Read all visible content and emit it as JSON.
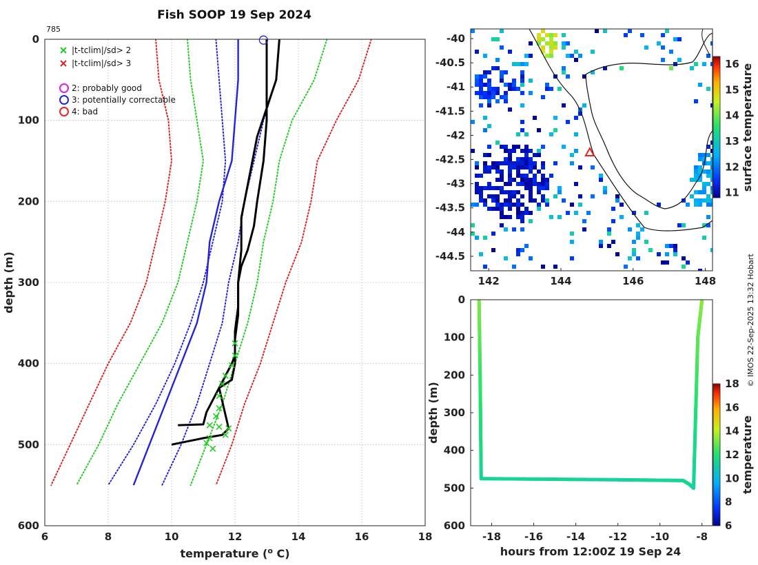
{
  "chart_data": [
    {
      "type": "line",
      "title": "Fish SOOP 19 Sep 2024",
      "profile_id": "785",
      "xlabel": "temperature (",
      "xlabel_sup": "o",
      "xlabel_tail": " C)",
      "ylabel": "depth (m)",
      "xlim": [
        6,
        18
      ],
      "ylim": [
        600,
        0
      ],
      "xticks": [
        "6",
        "8",
        "10",
        "12",
        "14",
        "16",
        "18"
      ],
      "yticks": [
        "0",
        "100",
        "200",
        "300",
        "400",
        "500",
        "600"
      ],
      "legend": [
        {
          "label": "|t-tclim|/sd> 2",
          "marker": "x",
          "color": "#22cc22"
        },
        {
          "label": "|t-tclim|/sd> 3",
          "marker": "x",
          "color": "#dd2222"
        },
        {
          "label": "2: probably good",
          "marker": "o",
          "color": "#dd22dd"
        },
        {
          "label": "3: potentially correctable",
          "marker": "o",
          "color": "#2222dd"
        },
        {
          "label": "4: bad",
          "marker": "o",
          "color": "#ee2222"
        }
      ],
      "climatology_depths": [
        0,
        50,
        100,
        150,
        200,
        250,
        300,
        350,
        400,
        450,
        500,
        550
      ],
      "series": [
        {
          "name": "clim -3sd",
          "color": "#dd2222",
          "style": "dotted",
          "values": [
            9.5,
            9.6,
            9.9,
            10.0,
            9.8,
            9.5,
            9.2,
            8.7,
            8.0,
            7.4,
            6.8,
            6.2
          ]
        },
        {
          "name": "clim -2sd",
          "color": "#22cc22",
          "style": "dotted",
          "values": [
            10.5,
            10.6,
            10.8,
            11.0,
            10.8,
            10.5,
            10.2,
            9.7,
            9.0,
            8.3,
            7.7,
            7.0
          ]
        },
        {
          "name": "clim -1sd",
          "color": "#2222dd",
          "style": "dotted",
          "values": [
            11.4,
            11.5,
            11.6,
            11.7,
            11.6,
            11.3,
            11.0,
            10.6,
            10.1,
            9.5,
            8.8,
            8.0
          ]
        },
        {
          "name": "clim mean",
          "color": "#2222dd",
          "style": "solid",
          "values": [
            12.1,
            12.1,
            12.0,
            11.9,
            11.5,
            11.2,
            11.1,
            10.8,
            10.3,
            9.8,
            9.3,
            8.8
          ]
        },
        {
          "name": "clim +1sd",
          "color": "#2222dd",
          "style": "dotted",
          "values": [
            13.4,
            13.3,
            12.9,
            12.6,
            12.3,
            12.1,
            11.8,
            11.6,
            11.2,
            10.8,
            10.3,
            9.7
          ]
        },
        {
          "name": "clim +2sd",
          "color": "#22cc22",
          "style": "dotted",
          "values": [
            14.9,
            14.5,
            13.8,
            13.4,
            13.2,
            12.9,
            12.7,
            12.4,
            12.0,
            11.6,
            11.1,
            10.6
          ]
        },
        {
          "name": "clim +3sd",
          "color": "#dd2222",
          "style": "dotted",
          "values": [
            16.3,
            15.9,
            15.2,
            14.6,
            14.4,
            14.1,
            13.6,
            13.2,
            12.8,
            12.3,
            11.9,
            11.4
          ]
        }
      ],
      "profiles": [
        {
          "name": "temperature profile A",
          "color": "#000000",
          "x": [
            13.0,
            13.0,
            13.0,
            12.9,
            12.7,
            12.6,
            12.4,
            12.2,
            12.1,
            12.1,
            12.0,
            12.0,
            12.0,
            11.9,
            11.5,
            11.3,
            11.1,
            11.0,
            10.2
          ],
          "depth": [
            0,
            50,
            100,
            150,
            200,
            230,
            260,
            280,
            300,
            330,
            360,
            390,
            400,
            420,
            430,
            445,
            460,
            475,
            476
          ]
        },
        {
          "name": "temperature profile B",
          "color": "#000000",
          "x": [
            13.4,
            13.3,
            12.7,
            12.5,
            12.2,
            12.2,
            12.1,
            12.1,
            12.0,
            12.0,
            11.9,
            11.5,
            11.8,
            11.6,
            11.0,
            10.0
          ],
          "depth": [
            0,
            50,
            120,
            160,
            220,
            260,
            300,
            340,
            370,
            390,
            400,
            430,
            480,
            488,
            492,
            500
          ]
        }
      ],
      "flag_circle": {
        "x": 12.9,
        "depth": 1,
        "color": "#2222dd"
      },
      "flagged_points": {
        "marker": "x",
        "color": "#22cc22",
        "points": [
          [
            12.0,
            375
          ],
          [
            12.0,
            390
          ],
          [
            11.9,
            402
          ],
          [
            11.7,
            415
          ],
          [
            11.6,
            425
          ],
          [
            11.5,
            440
          ],
          [
            11.5,
            455
          ],
          [
            11.4,
            465
          ],
          [
            11.2,
            476
          ],
          [
            11.5,
            478
          ],
          [
            11.8,
            480
          ],
          [
            11.7,
            488
          ],
          [
            11.2,
            492
          ],
          [
            11.1,
            498
          ],
          [
            11.3,
            505
          ]
        ]
      }
    },
    {
      "type": "heatmap",
      "colorbar_label": "surface temperature",
      "colorbar_ticks": [
        "11",
        "12",
        "13",
        "14",
        "15",
        "16"
      ],
      "colorbar_range": [
        10.8,
        16.3
      ],
      "xlim": [
        141.5,
        148.2
      ],
      "ylim": [
        -44.8,
        -39.8
      ],
      "xticks": [
        "142",
        "144",
        "146",
        "148"
      ],
      "yticks": [
        "-40",
        "-40.5",
        "-41",
        "-41.5",
        "-42",
        "-42.5",
        "-43",
        "-43.5",
        "-44",
        "-44.5"
      ],
      "marker": {
        "lon": 144.8,
        "lat": -42.35,
        "marker": "triangle",
        "color": "#ee2222"
      }
    },
    {
      "type": "scatter",
      "xlabel": "hours from 12:00Z 19 Sep 24",
      "ylabel": "depth (m)",
      "xlim": [
        -19,
        -7.5
      ],
      "ylim": [
        600,
        0
      ],
      "xticks": [
        "-18",
        "-16",
        "-14",
        "-12",
        "-10",
        "-8"
      ],
      "yticks": [
        "0",
        "100",
        "200",
        "300",
        "400",
        "500",
        "600"
      ],
      "colorbar_label": "temperature",
      "colorbar_ticks": [
        "6",
        "8",
        "10",
        "12",
        "14",
        "16",
        "18"
      ],
      "colorbar_range": [
        6,
        18
      ],
      "track": {
        "hours": [
          -18.6,
          -18.55,
          -18.5,
          -12.0,
          -8.9,
          -8.6,
          -8.4,
          -8.3,
          -8.2,
          -8.0
        ],
        "depth": [
          0,
          200,
          475,
          478,
          480,
          490,
          500,
          300,
          100,
          0
        ],
        "temp": [
          13.2,
          12.3,
          11.4,
          11.3,
          11.4,
          11.6,
          11.2,
          11.9,
          12.8,
          13.3
        ]
      }
    }
  ],
  "credit": "© IMOS 22-Sep-2025 13:32 Hobart"
}
